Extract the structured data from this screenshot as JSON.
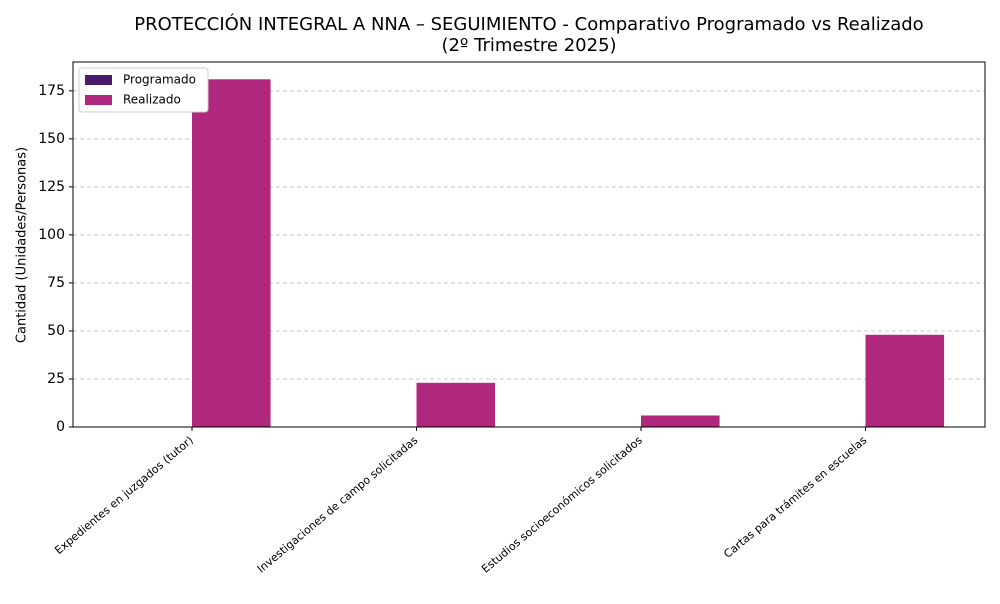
{
  "chart_data": {
    "type": "bar",
    "title": [
      "PROTECCIÓN INTEGRAL A NNA – SEGUIMIENTO - Comparativo Programado vs Realizado",
      "(2º Trimestre 2025)"
    ],
    "y_label": "Cantidad (Unidades/Personas)",
    "categories": [
      "Expedientes en juzgados (tutor)",
      "Investigaciones de campo solicitadas",
      "Estudios socioeconómicos solicitados",
      "Cartas para trámites en escuelas"
    ],
    "series": [
      {
        "name": "Programado",
        "color": "#4a1a6e",
        "values": [
          0,
          0,
          0,
          0
        ]
      },
      {
        "name": "Realizado",
        "color": "#b0287e",
        "values": [
          181,
          23,
          6,
          48
        ]
      }
    ],
    "ylim": [
      0,
      190
    ],
    "yticks": [
      0,
      25,
      50,
      75,
      100,
      125,
      150,
      175
    ],
    "grid": true,
    "legend": "upper left"
  }
}
